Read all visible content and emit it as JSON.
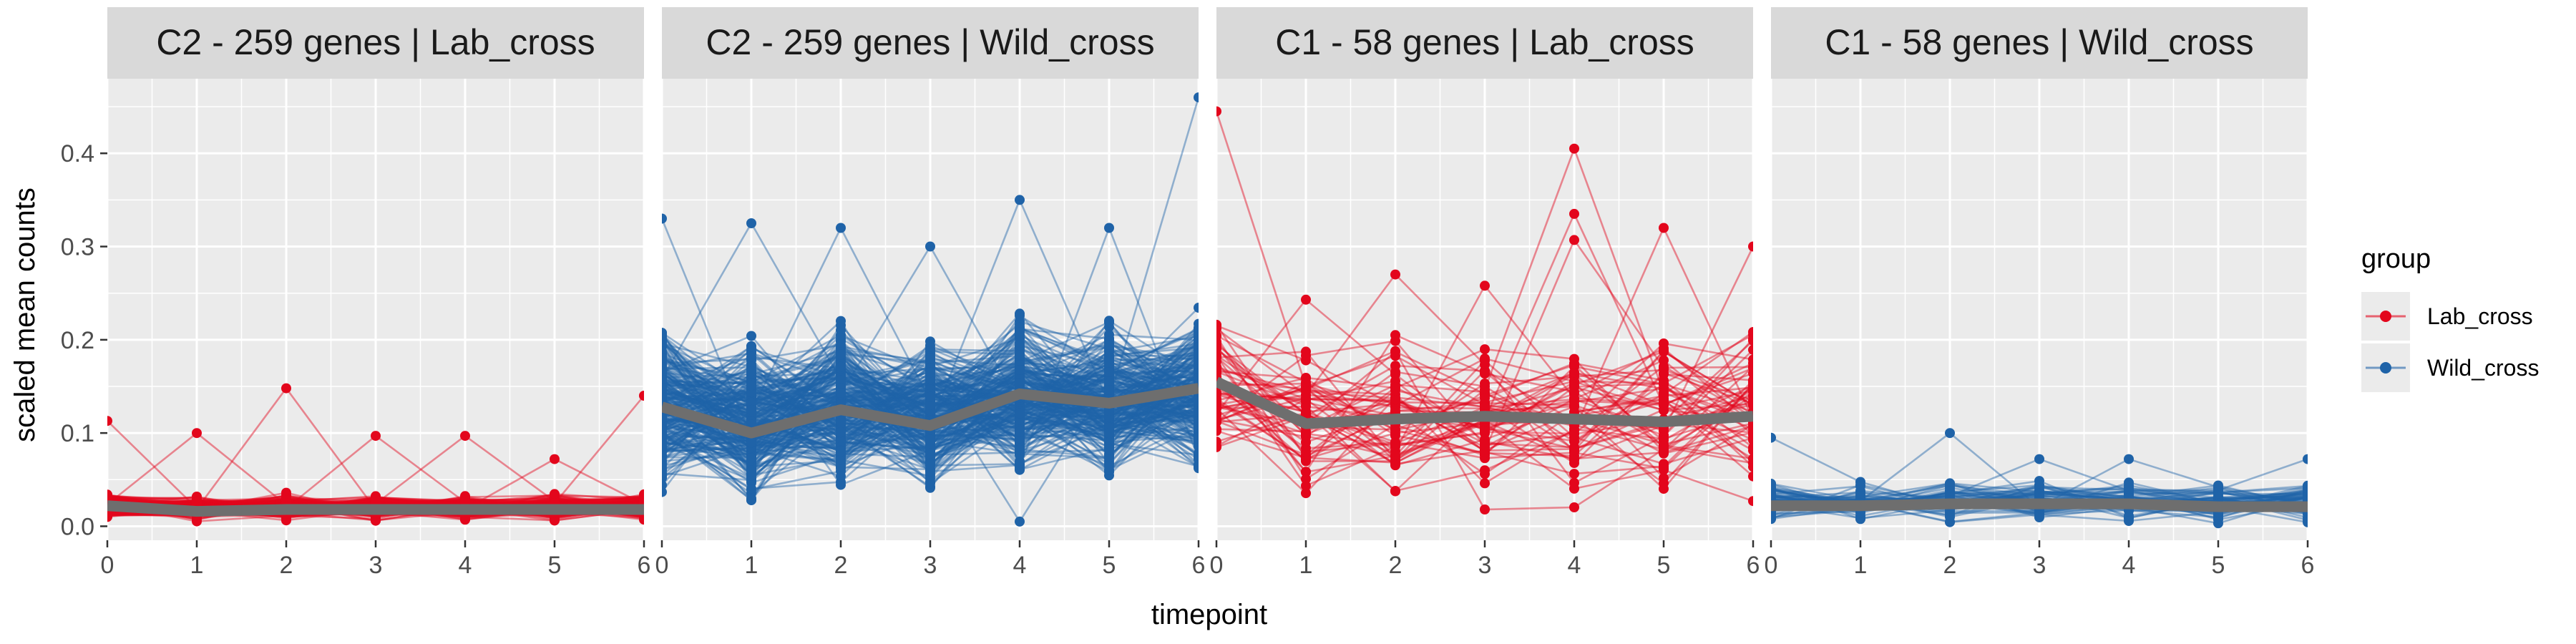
{
  "chart_data": {
    "type": "line",
    "ylabel": "scaled mean counts",
    "xlabel": "timepoint",
    "x": [
      0,
      1,
      2,
      3,
      4,
      5,
      6
    ],
    "x_ticks": [
      "0",
      "1",
      "2",
      "3",
      "4",
      "5",
      "6"
    ],
    "ylim": [
      -0.015,
      0.48
    ],
    "y_ticks": [
      0.0,
      0.1,
      0.2,
      0.3,
      0.4
    ],
    "y_tick_labels": [
      "0.0",
      "0.1",
      "0.2",
      "0.3",
      "0.4"
    ],
    "grid": true,
    "legend": {
      "title": "group",
      "position": "right",
      "entries": [
        {
          "name": "Lab_cross",
          "color": "#E3061C"
        },
        {
          "name": "Wild_cross",
          "color": "#1F63A8"
        }
      ]
    },
    "mean_line_color": "#6E6E6E",
    "panels": [
      {
        "title": "C2 - 259 genes | Lab_cross",
        "group": "Lab_cross",
        "gene_count": 259,
        "mean": [
          0.022,
          0.016,
          0.018,
          0.018,
          0.018,
          0.018,
          0.018
        ],
        "center_range": [
          0.008,
          0.04
        ],
        "outliers": [
          [
            0,
            0.113
          ],
          [
            1,
            0.1
          ],
          [
            2,
            0.148
          ],
          [
            3,
            0.097
          ],
          [
            4,
            0.097
          ],
          [
            5,
            0.072
          ],
          [
            6,
            0.14
          ]
        ]
      },
      {
        "title": "C2 - 259 genes | Wild_cross",
        "group": "Wild_cross",
        "gene_count": 259,
        "mean": [
          0.128,
          0.1,
          0.125,
          0.108,
          0.142,
          0.132,
          0.148
        ],
        "center_range": [
          0.03,
          0.24
        ],
        "outliers": [
          [
            0,
            0.33
          ],
          [
            1,
            0.325
          ],
          [
            2,
            0.32
          ],
          [
            3,
            0.3
          ],
          [
            4,
            0.35
          ],
          [
            5,
            0.32
          ],
          [
            6,
            0.46
          ],
          [
            4,
            0.005
          ]
        ]
      },
      {
        "title": "C1 - 58 genes | Lab_cross",
        "group": "Lab_cross",
        "gene_count": 58,
        "mean": [
          0.155,
          0.11,
          0.115,
          0.118,
          0.115,
          0.112,
          0.118
        ],
        "center_range": [
          0.01,
          0.24
        ],
        "outliers": [
          [
            0,
            0.445
          ],
          [
            1,
            0.243
          ],
          [
            2,
            0.27
          ],
          [
            3,
            0.258
          ],
          [
            4,
            0.405
          ],
          [
            4,
            0.335
          ],
          [
            4,
            0.307
          ],
          [
            5,
            0.32
          ],
          [
            6,
            0.3
          ],
          [
            3,
            0.018
          ]
        ]
      },
      {
        "title": "C1 - 58 genes | Wild_cross",
        "group": "Wild_cross",
        "gene_count": 58,
        "mean": [
          0.022,
          0.022,
          0.024,
          0.024,
          0.024,
          0.021,
          0.021
        ],
        "center_range": [
          0.005,
          0.06
        ],
        "outliers": [
          [
            0,
            0.095
          ],
          [
            2,
            0.1
          ],
          [
            3,
            0.072
          ],
          [
            4,
            0.072
          ],
          [
            6,
            0.072
          ]
        ]
      }
    ]
  }
}
